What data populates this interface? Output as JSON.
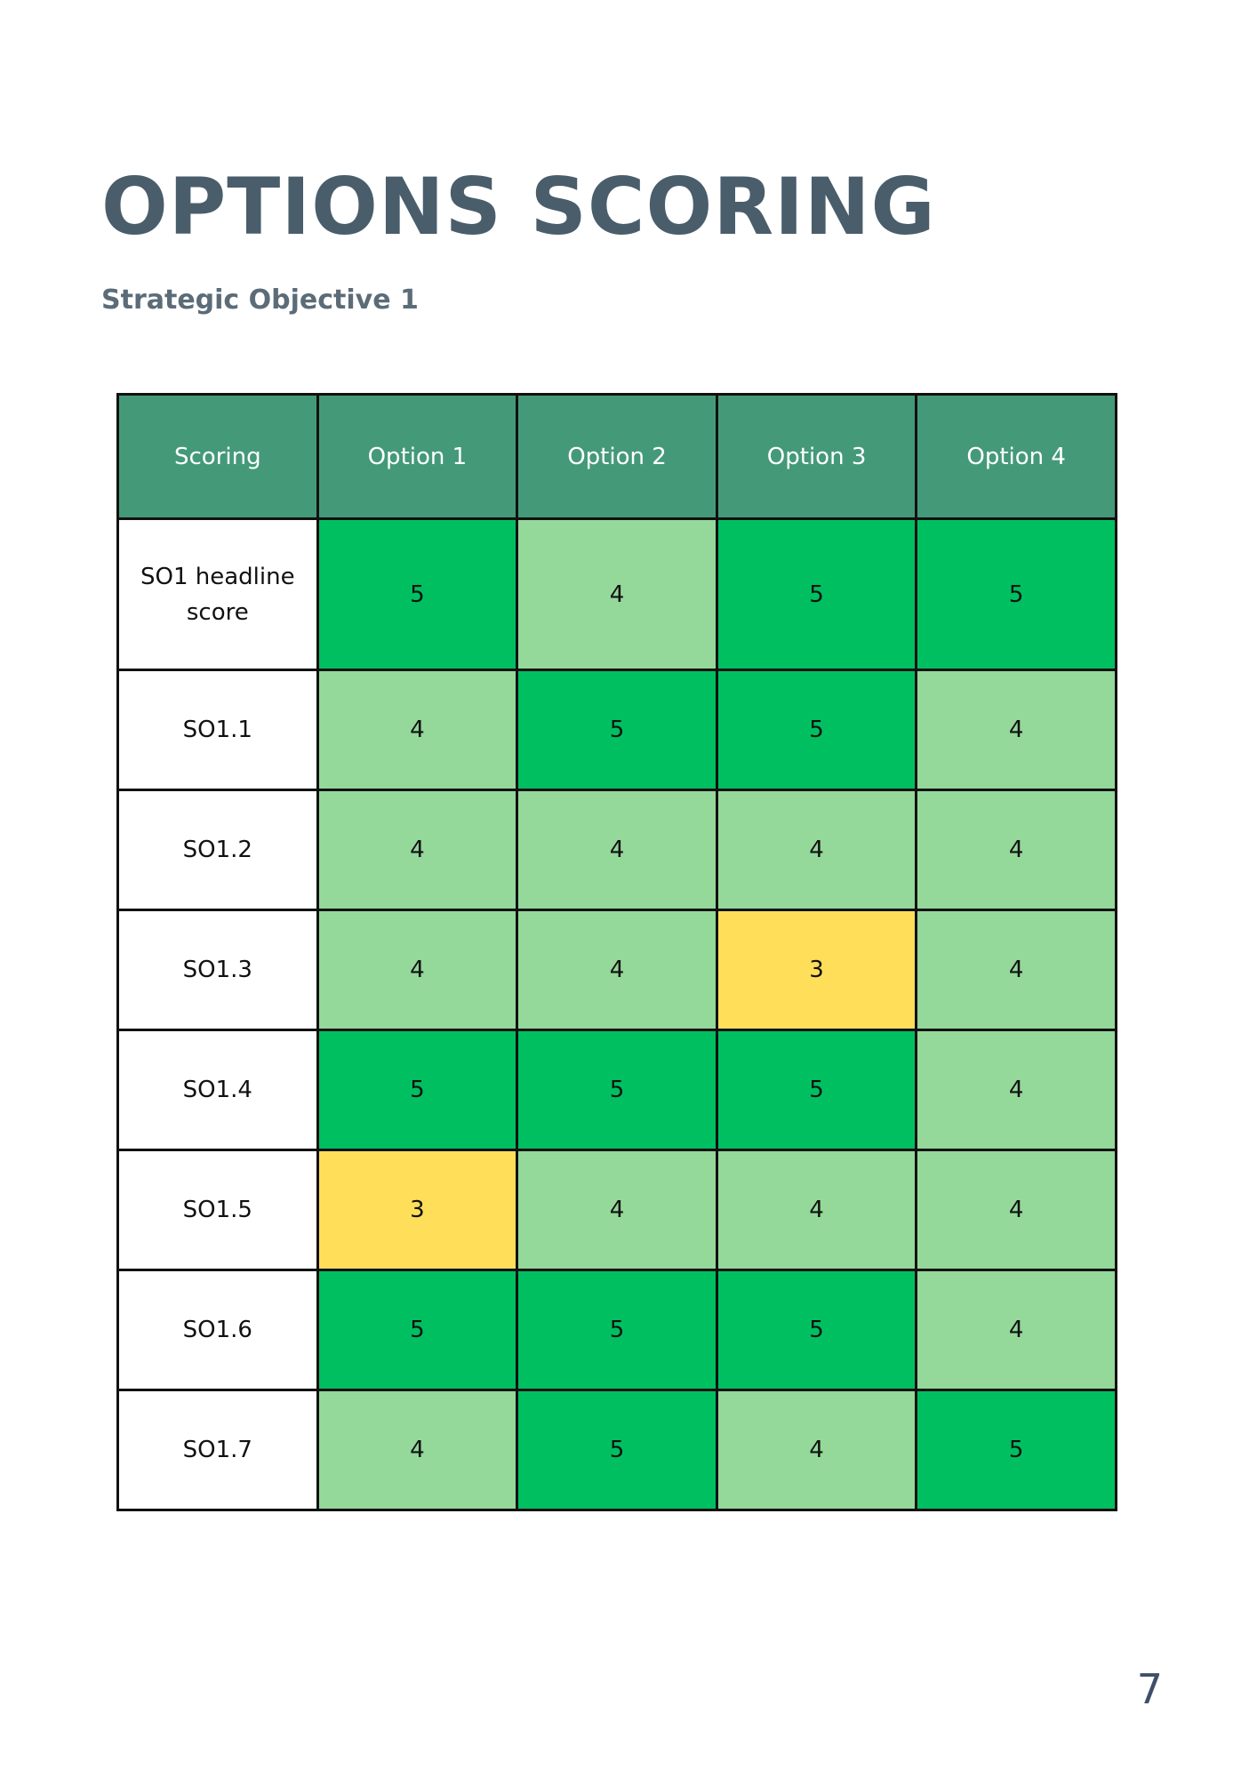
{
  "page": {
    "title": "OPTIONS SCORING",
    "subtitle": "Strategic Objective 1",
    "page_number": "7"
  },
  "colors": {
    "title": "#4a5d6b",
    "header_fill": "#449a78",
    "score_5": "#00bf60",
    "score_4": "#94d89a",
    "score_3": "#ffde59",
    "border": "#111111"
  },
  "table": {
    "headers": [
      "Scoring",
      "Option 1",
      "Option 2",
      "Option 3",
      "Option 4"
    ],
    "rows": [
      {
        "label": "SO1 headline score",
        "scores": [
          5,
          4,
          5,
          5
        ]
      },
      {
        "label": "SO1.1",
        "scores": [
          4,
          5,
          5,
          4
        ]
      },
      {
        "label": "SO1.2",
        "scores": [
          4,
          4,
          4,
          4
        ]
      },
      {
        "label": "SO1.3",
        "scores": [
          4,
          4,
          3,
          4
        ]
      },
      {
        "label": "SO1.4",
        "scores": [
          5,
          5,
          5,
          4
        ]
      },
      {
        "label": "SO1.5",
        "scores": [
          3,
          4,
          4,
          4
        ]
      },
      {
        "label": "SO1.6",
        "scores": [
          5,
          5,
          5,
          4
        ]
      },
      {
        "label": "SO1.7",
        "scores": [
          4,
          5,
          4,
          5
        ]
      }
    ]
  }
}
